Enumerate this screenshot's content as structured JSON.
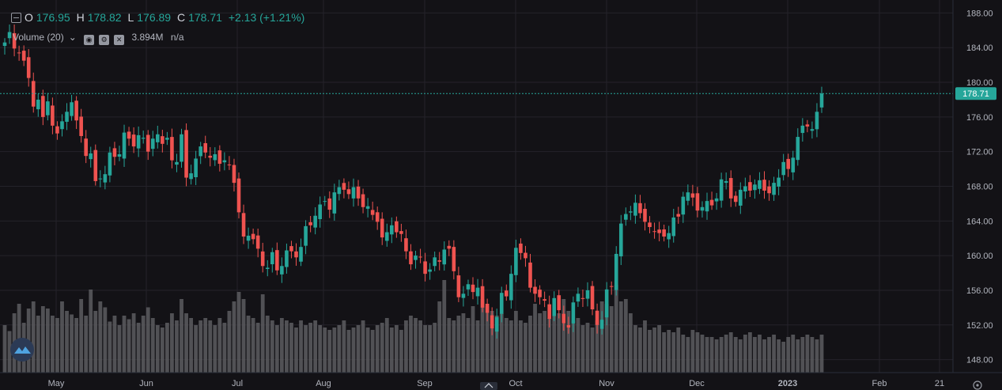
{
  "legend": {
    "o_label": "O",
    "o_value": "176.95",
    "h_label": "H",
    "h_value": "178.82",
    "l_label": "L",
    "l_value": "176.89",
    "c_label": "C",
    "c_value": "178.71",
    "change": "+2.13 (+1.21%)"
  },
  "volume_legend": {
    "label": "Volume (20)",
    "value": "3.894M",
    "extra": "n/a"
  },
  "colors": {
    "up": "#26a69a",
    "down": "#ef5350",
    "volume": "#5d5d60",
    "background": "#131216",
    "grid": "#24232a"
  },
  "chart_data": {
    "type": "candlestick",
    "ylim": [
      146.5,
      189.5
    ],
    "y_ticks": [
      "148.00",
      "152.00",
      "156.00",
      "160.00",
      "164.00",
      "168.00",
      "172.00",
      "176.00",
      "180.00",
      "184.00",
      "188.00"
    ],
    "x_ticks": [
      "May",
      "Jun",
      "Jul",
      "Aug",
      "Sep",
      "Oct",
      "Nov",
      "Dec",
      "2023",
      "Feb",
      "21"
    ],
    "last_price": "178.71",
    "closes": [
      184.6,
      185.8,
      183.9,
      183.4,
      182.5,
      180.5,
      177.2,
      178.0,
      176.0,
      177.8,
      175.0,
      174.1,
      175.5,
      176.6,
      177.7,
      175.6,
      173.8,
      171.5,
      171.8,
      168.6,
      168.9,
      169.4,
      171.9,
      171.4,
      171.7,
      174.2,
      173.5,
      172.6,
      173.9,
      173.6,
      172.0,
      173.5,
      174.0,
      172.9,
      173.6,
      171.0,
      170.8,
      174.0,
      169.0,
      169.5,
      171.2,
      172.6,
      171.9,
      171.3,
      171.7,
      170.6,
      171.0,
      170.5,
      168.4,
      165.0,
      162.2,
      162.3,
      161.9,
      160.8,
      158.8,
      158.6,
      160.4,
      158.3,
      158.8,
      160.6,
      160.5,
      159.8,
      161.0,
      163.4,
      163.5,
      164.6,
      165.9,
      166.3,
      165.3,
      167.3,
      167.9,
      167.6,
      167.1,
      167.9,
      166.6,
      165.6,
      165.7,
      164.7,
      163.9,
      162.1,
      162.7,
      163.5,
      162.7,
      162.5,
      160.5,
      159.0,
      160.0,
      159.8,
      157.9,
      158.4,
      159.8,
      159.3,
      160.7,
      160.8,
      158.2,
      155.2,
      155.6,
      156.7,
      155.8,
      156.3,
      154.0,
      153.4,
      151.6,
      152.9,
      155.7,
      155.3,
      157.9,
      160.9,
      160.3,
      159.7,
      156.3,
      155.6,
      155.2,
      154.8,
      152.7,
      155.1,
      153.7,
      152.2,
      151.7,
      154.6,
      155.6,
      155.0,
      156.0,
      153.8,
      152.0,
      152.6,
      156.1,
      156.4,
      160.2,
      163.7,
      164.8,
      165.1,
      166.1,
      164.9,
      163.9,
      163.3,
      162.8,
      162.6,
      162.2,
      162.6,
      164.4,
      164.5,
      166.8,
      167.3,
      166.7,
      165.2,
      165.6,
      166.3,
      165.8,
      166.6,
      168.8,
      168.6,
      166.6,
      166.2,
      167.6,
      168.0,
      167.5,
      168.2,
      168.7,
      167.5,
      167.2,
      168.4,
      169.0,
      170.8,
      170.0,
      171.3,
      173.7,
      175.0,
      174.9,
      174.6,
      176.6,
      178.71
    ]
  }
}
